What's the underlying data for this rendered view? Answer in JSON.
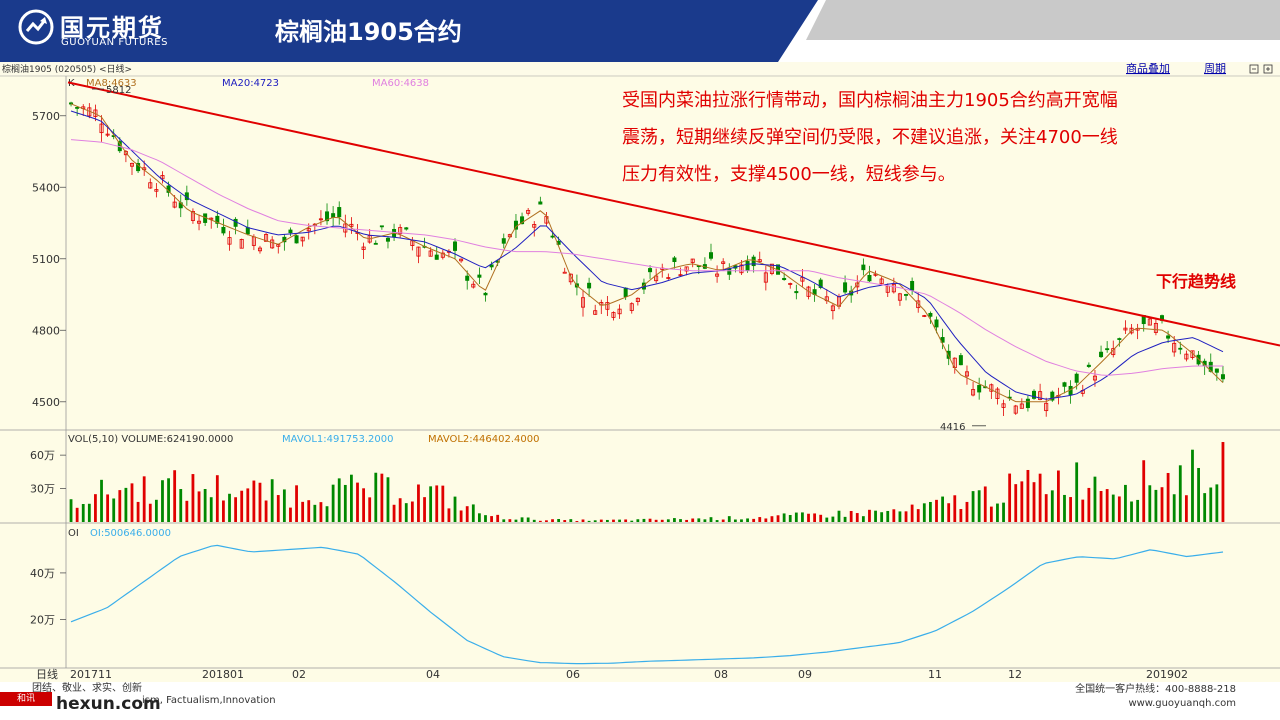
{
  "header": {
    "brand_cn": "国元期货",
    "brand_en": "GUOYUAN FUTURES",
    "title": "棕榈油1905合约",
    "colors": {
      "band": "#1a3a8c",
      "accent": "#c8c8c8"
    }
  },
  "toolbar": {
    "symbol_label": "棕榈油1905 (020505) <日线>",
    "link1": "商品叠加",
    "link2": "周期"
  },
  "legend": {
    "k": "K",
    "ma8": "MA8:4633",
    "ma20": "MA20:4723",
    "ma60": "MA60:4638",
    "vol": "VOL(5,10) VOLUME:624190.0000",
    "mavol1": "MAVOL1:491753.2000",
    "mavol2": "MAVOL2:446402.4000",
    "oi_title": "OI",
    "oi_value": "OI:500646.0000"
  },
  "commentary": {
    "line1": "受国内菜油拉涨行情带动，国内棕榈油主力1905合约高开宽幅",
    "line2": "震荡，短期继续反弹空间仍受限，不建议追涨，关注4700一线",
    "line3": "压力有效性，支撑4500一线，短线参与。"
  },
  "trend_label": "下行趋势线",
  "footer": {
    "left_line1": "团结、敬业、求实、创新",
    "left_line2": "ism, Factualism,Innovation",
    "hotline": "全国统一客户热线：400-8888-218",
    "website": "www.guoyuanqh.com",
    "hexun_badge": "和讯",
    "hexun_text": "hexun.com"
  },
  "chart_data": {
    "type": "line",
    "title": "",
    "price_axis": {
      "ticks": [
        "5700",
        "5400",
        "5100",
        "4800",
        "4500"
      ],
      "ylim": [
        4390,
        5850
      ]
    },
    "volume_axis": {
      "ticks": [
        "60万",
        "30万"
      ],
      "ylim": [
        0,
        700000
      ]
    },
    "oi_axis": {
      "ticks": [
        "40万",
        "20万"
      ],
      "ylim": [
        0,
        550000
      ]
    },
    "x_ticks": [
      "日线",
      "201711",
      "201801",
      "02",
      "04",
      "06",
      "08",
      "09",
      "11",
      "12",
      "201902"
    ],
    "annotations": [
      {
        "label": "5812",
        "x": "201711",
        "value": 5812
      },
      {
        "label": "4416",
        "x": "12",
        "value": 4416
      }
    ],
    "price_series": [
      {
        "name": "MA8",
        "values": [
          5750,
          5700,
          5520,
          5420,
          5300,
          5250,
          5200,
          5160,
          5230,
          5280,
          5180,
          5210,
          5150,
          5100,
          4960,
          5230,
          5310,
          5000,
          4900,
          4950,
          5050,
          5080,
          5050,
          5100,
          5050,
          4960,
          4900,
          5050,
          5000,
          4870,
          4620,
          4560,
          4500,
          4500,
          4560,
          4680,
          4810,
          4800,
          4700,
          4580
        ]
      },
      {
        "name": "MA20",
        "values": [
          5720,
          5680,
          5560,
          5440,
          5350,
          5290,
          5230,
          5200,
          5210,
          5240,
          5200,
          5190,
          5170,
          5120,
          5060,
          5140,
          5250,
          5120,
          5000,
          4970,
          5000,
          5040,
          5050,
          5080,
          5070,
          5010,
          4940,
          4980,
          5000,
          4930,
          4760,
          4620,
          4540,
          4510,
          4530,
          4600,
          4700,
          4750,
          4770,
          4710
        ]
      },
      {
        "name": "MA60",
        "values": [
          5600,
          5590,
          5560,
          5510,
          5440,
          5370,
          5310,
          5260,
          5240,
          5230,
          5220,
          5210,
          5200,
          5180,
          5150,
          5130,
          5130,
          5120,
          5100,
          5080,
          5060,
          5050,
          5050,
          5050,
          5050,
          5050,
          5020,
          5000,
          4980,
          4950,
          4880,
          4800,
          4730,
          4670,
          4630,
          4610,
          4620,
          4640,
          4650,
          4650
        ]
      }
    ],
    "trend_line": {
      "name": "下行趋势线",
      "start": 5840,
      "end": 4785
    },
    "oi_series": {
      "name": "OI",
      "values": [
        190000,
        250000,
        360000,
        470000,
        520000,
        490000,
        500000,
        510000,
        480000,
        360000,
        230000,
        110000,
        40000,
        15000,
        10000,
        12000,
        20000,
        25000,
        30000,
        35000,
        45000,
        60000,
        80000,
        100000,
        150000,
        230000,
        330000,
        440000,
        470000,
        460000,
        500000,
        470000,
        490000
      ]
    }
  }
}
